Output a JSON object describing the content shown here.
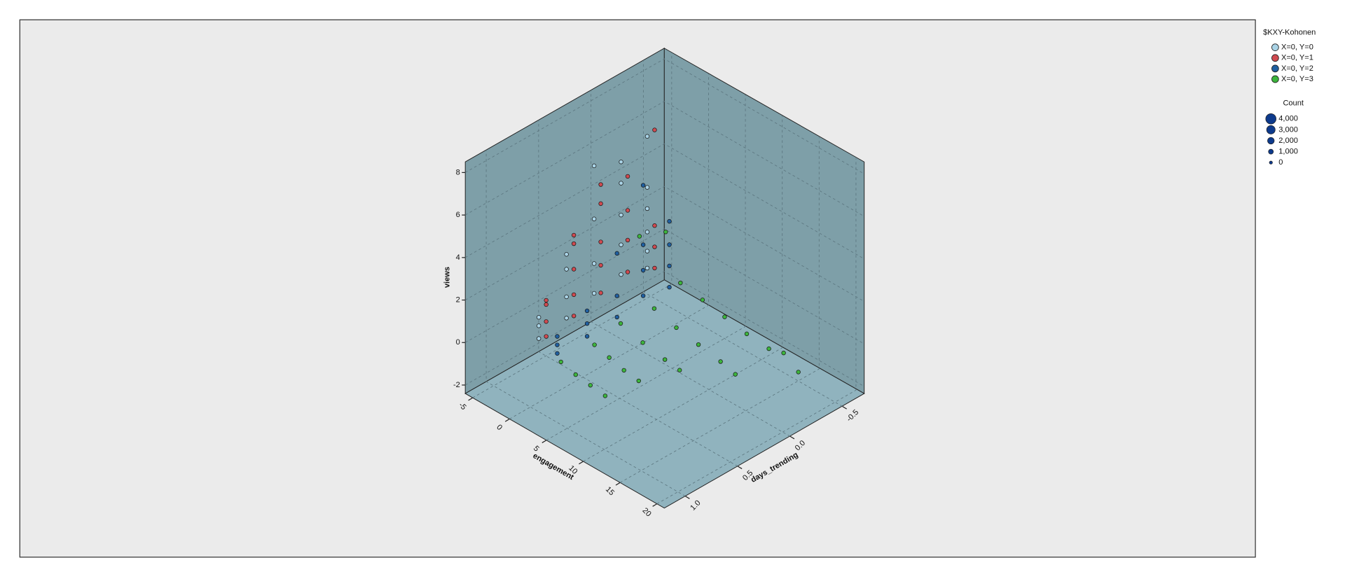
{
  "chart_data": {
    "type": "scatter3d",
    "x_label": "engagement",
    "y_label": "days_trending",
    "z_label": "views",
    "xlim": [
      -6,
      21
    ],
    "xticks": [
      -5,
      0,
      5,
      10,
      15,
      20
    ],
    "ylim": [
      1.2,
      -0.7
    ],
    "yticks": [
      {
        "value": 1.0,
        "label": "1.0"
      },
      0.5,
      {
        "value": 0.0,
        "label": "0.0"
      },
      -0.5
    ],
    "zlim": [
      -2.4,
      8.5
    ],
    "zticks": [
      -2,
      0,
      2,
      4,
      6,
      8
    ],
    "grid": true,
    "legend_title": "$KXY-Kohonen",
    "size_legend": {
      "title": "Count",
      "items": [
        {
          "value": 4000,
          "label": "4,000"
        },
        {
          "value": 3000,
          "label": "3,000"
        },
        {
          "value": 2000,
          "label": "2,000"
        },
        {
          "value": 1000,
          "label": "1,000"
        },
        0
      ]
    },
    "series": [
      {
        "name": "X=0, Y=0",
        "color": "#a9d3e6",
        "x": [
          -1,
          -1,
          -1,
          -0.8,
          -0.8,
          -0.8,
          -0.8,
          -0.6,
          -0.6,
          -0.6,
          -0.6,
          -0.5,
          -0.5,
          -0.5,
          -0.5,
          -0.5,
          -0.5,
          -0.5,
          -0.5,
          -0.5,
          -0.5,
          -0.5
        ],
        "y": [
          0.85,
          0.85,
          0.85,
          0.6,
          0.6,
          0.6,
          0.6,
          0.35,
          0.35,
          0.35,
          0.35,
          0.1,
          0.1,
          0.1,
          0.1,
          0.1,
          -0.15,
          -0.15,
          -0.15,
          -0.15,
          -0.15,
          -0.15
        ],
        "z": [
          0.2,
          0.8,
          1.2,
          0.5,
          1.5,
          2.8,
          3.5,
          1,
          2.4,
          4.5,
          7,
          1.2,
          2.6,
          4,
          5.5,
          6.5,
          0.8,
          1.6,
          2.5,
          3.6,
          4.6,
          7
        ]
      },
      {
        "name": "X=0, Y=1",
        "color": "#d04a50",
        "x": [
          0,
          0,
          0,
          0,
          0.2,
          0.2,
          0.2,
          0.2,
          0.2,
          0.3,
          0.3,
          0.3,
          0.3,
          0.3,
          0.4,
          0.4,
          0.4,
          0.4,
          0.5,
          0.5,
          0.5,
          0.5
        ],
        "y": [
          0.85,
          0.85,
          0.85,
          0.85,
          0.6,
          0.6,
          0.6,
          0.6,
          0.6,
          0.35,
          0.35,
          0.35,
          0.35,
          0.35,
          0.1,
          0.1,
          0.1,
          0.1,
          -0.15,
          -0.15,
          -0.15,
          -0.15
        ],
        "z": [
          0.5,
          1.2,
          2,
          2.2,
          0.8,
          1.8,
          3,
          4.2,
          4.6,
          1.2,
          2.5,
          3.6,
          5.4,
          6.3,
          1.5,
          3,
          4.4,
          6,
          1,
          2,
          3,
          7.5
        ]
      },
      {
        "name": "X=0, Y=2",
        "color": "#1f5fa0",
        "x": [
          1.5,
          1.5,
          1.5,
          2,
          2,
          2,
          2.5,
          2.5,
          2.5,
          2.5,
          2.5,
          2.5,
          2.5,
          2.5,
          2.5,
          2.5,
          2.5
        ],
        "y": [
          0.85,
          0.85,
          0.85,
          0.6,
          0.6,
          0.6,
          0.35,
          0.35,
          0.35,
          0.1,
          0.1,
          0.1,
          0.1,
          -0.15,
          -0.15,
          -0.15,
          -0.15
        ],
        "z": [
          0,
          0.4,
          0.8,
          0.2,
          0.8,
          1.4,
          0.5,
          1.5,
          3.5,
          0.8,
          2,
          3.2,
          6,
          0.5,
          1.5,
          2.5,
          3.6
        ]
      },
      {
        "name": "X=0, Y=3",
        "color": "#3cb53c",
        "x": [
          2,
          4,
          6,
          8,
          3,
          5,
          7,
          9,
          3,
          6,
          9,
          11,
          4,
          7,
          10,
          13,
          15,
          4,
          7,
          10,
          13,
          16,
          18,
          20,
          2,
          2
        ],
        "y": [
          0.85,
          0.85,
          0.85,
          0.85,
          0.6,
          0.6,
          0.6,
          0.6,
          0.35,
          0.35,
          0.35,
          0.35,
          0.1,
          0.1,
          0.1,
          0.1,
          0.1,
          -0.15,
          -0.15,
          -0.15,
          -0.15,
          -0.15,
          -0.15,
          -0.15,
          0.1,
          -0.15
        ],
        "z": [
          -0.3,
          -0.5,
          -0.6,
          -0.7,
          0,
          -0.2,
          -0.4,
          -0.5,
          0.3,
          0,
          -0.2,
          -0.3,
          0.5,
          0.2,
          0,
          -0.2,
          -0.4,
          1,
          0.8,
          0.6,
          0.4,
          0.3,
          0.5,
          0,
          3.5,
          3
        ]
      }
    ]
  }
}
